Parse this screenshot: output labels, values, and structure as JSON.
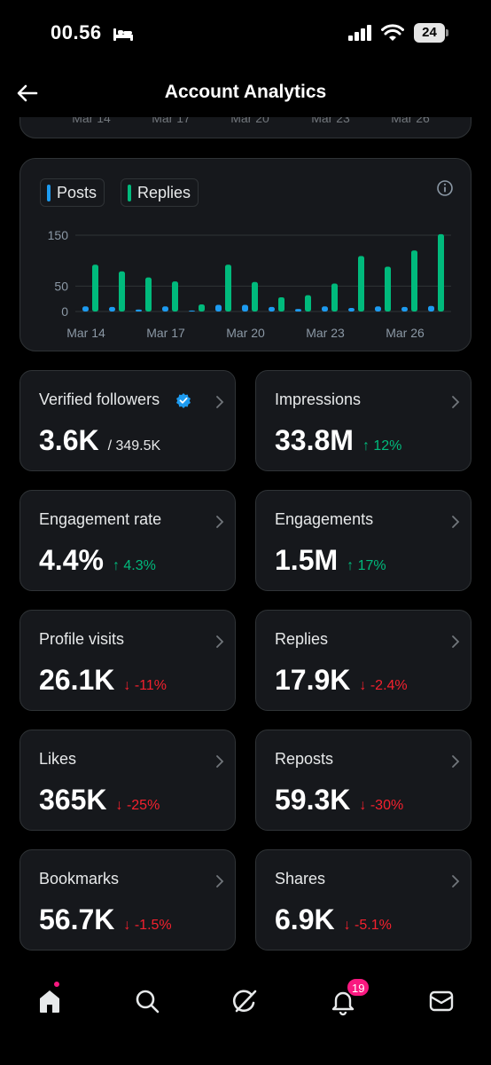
{
  "status_bar": {
    "time": "00.56",
    "battery": "24"
  },
  "header": {
    "title": "Account Analytics"
  },
  "previous_chart": {
    "x_ticks": [
      "Mar 14",
      "Mar 17",
      "Mar 20",
      "Mar 23",
      "Mar 26"
    ]
  },
  "chart_data": {
    "type": "bar",
    "legend": [
      "Posts",
      "Replies"
    ],
    "categories": [
      "Mar 14",
      "Mar 15",
      "Mar 16",
      "Mar 17",
      "Mar 18",
      "Mar 19",
      "Mar 20",
      "Mar 21",
      "Mar 22",
      "Mar 23",
      "Mar 24",
      "Mar 25",
      "Mar 26",
      "Mar 27"
    ],
    "x_tick_labels": [
      "Mar 14",
      "Mar 17",
      "Mar 20",
      "Mar 23",
      "Mar 26"
    ],
    "y_ticks": [
      0,
      50,
      150
    ],
    "ylim": [
      0,
      150
    ],
    "series": [
      {
        "name": "Posts",
        "color": "#1d9bf0",
        "values": [
          10,
          9,
          4,
          10,
          2,
          13,
          13,
          9,
          5,
          10,
          7,
          10,
          9,
          11
        ]
      },
      {
        "name": "Replies",
        "color": "#00ba7c",
        "values": [
          92,
          79,
          67,
          59,
          14,
          92,
          58,
          28,
          32,
          55,
          109,
          88,
          120,
          152
        ]
      }
    ],
    "grid": true,
    "legend_position": "top-left"
  },
  "stats": [
    {
      "label": "Verified followers",
      "value": "3.6K",
      "total": "/ 349.5K",
      "change": "",
      "direction": "none",
      "verified_icon": true
    },
    {
      "label": "Impressions",
      "value": "33.8M",
      "change": "↑ 12%",
      "direction": "up"
    },
    {
      "label": "Engagement rate",
      "value": "4.4%",
      "change": "↑ 4.3%",
      "direction": "up"
    },
    {
      "label": "Engagements",
      "value": "1.5M",
      "change": "↑ 17%",
      "direction": "up"
    },
    {
      "label": "Profile visits",
      "value": "26.1K",
      "change": "↓ -11%",
      "direction": "down"
    },
    {
      "label": "Replies",
      "value": "17.9K",
      "change": "↓ -2.4%",
      "direction": "down"
    },
    {
      "label": "Likes",
      "value": "365K",
      "change": "↓ -25%",
      "direction": "down"
    },
    {
      "label": "Reposts",
      "value": "59.3K",
      "change": "↓ -30%",
      "direction": "down"
    },
    {
      "label": "Bookmarks",
      "value": "56.7K",
      "change": "↓ -1.5%",
      "direction": "down"
    },
    {
      "label": "Shares",
      "value": "6.9K",
      "change": "↓ -5.1%",
      "direction": "down"
    }
  ],
  "bottom_nav": {
    "items": [
      "home-icon",
      "search-icon",
      "grok-icon",
      "notifications-icon",
      "messages-icon"
    ],
    "notifications_badge": "19"
  },
  "colors": {
    "posts": "#1d9bf0",
    "replies": "#00ba7c",
    "up": "#00ba7c",
    "down": "#f4212e",
    "badge": "#f91880"
  }
}
